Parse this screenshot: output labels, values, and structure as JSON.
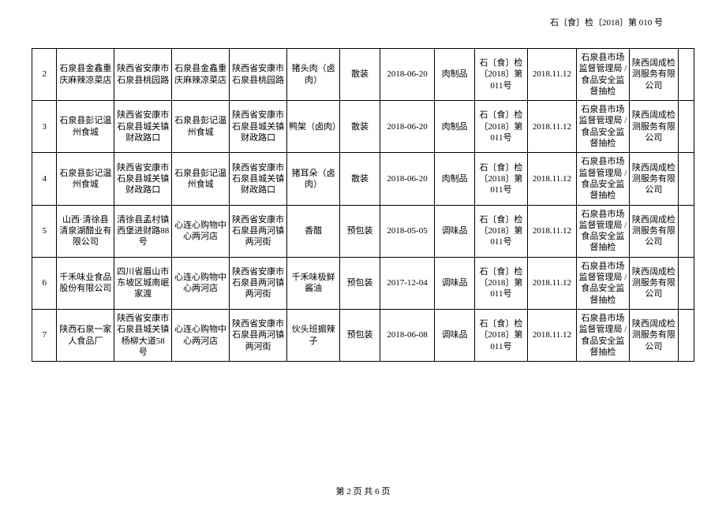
{
  "header": {
    "docref": "石〔食〕检〔2018〕第 010 号"
  },
  "rows": [
    {
      "idx": "2",
      "c1": "石泉县金鑫重庆麻辣凉菜店",
      "c2": "陕西省安康市石泉县桃园路",
      "c3": "石泉县金鑫重庆麻辣凉菜店",
      "c4": "陕西省安康市石泉县桃园路",
      "c5": "猪头肉（卤肉）",
      "c6": "散装",
      "c7": "2018-06-20",
      "c8": "肉制品",
      "c9": "石〔食〕检〔2018〕第 011号",
      "c10": "2018.11.12",
      "c11": "石泉县市场监督管理局 / 食品安全监督抽检",
      "c12": "陕西阔成检测服务有限公司",
      "c13": ""
    },
    {
      "idx": "3",
      "c1": "石泉县彭记温州食城",
      "c2": "陕西省安康市石泉县城关镇财政路口",
      "c3": "石泉县彭记温州食城",
      "c4": "陕西省安康市石泉县城关镇财政路口",
      "c5": "鸭架（卤肉）",
      "c6": "散装",
      "c7": "2018-06-20",
      "c8": "肉制品",
      "c9": "石〔食〕检〔2018〕第 011号",
      "c10": "2018.11.12",
      "c11": "石泉县市场监督管理局 / 食品安全监督抽检",
      "c12": "陕西阔成检测服务有限公司",
      "c13": ""
    },
    {
      "idx": "4",
      "c1": "石泉县彭记温州食城",
      "c2": "陕西省安康市石泉县城关镇财政路口",
      "c3": "石泉县彭记温州食城",
      "c4": "陕西省安康市石泉县城关镇财政路口",
      "c5": "猪耳朵（卤肉）",
      "c6": "散装",
      "c7": "2018-06-20",
      "c8": "肉制品",
      "c9": "石〔食〕检〔2018〕第 011号",
      "c10": "2018.11.12",
      "c11": "石泉县市场监督管理局 / 食品安全监督抽检",
      "c12": "陕西阔成检测服务有限公司",
      "c13": ""
    },
    {
      "idx": "5",
      "c1": "山西·清徐县清泉湖醋业有限公司",
      "c2": "清徐县孟村镇西堡进财路88号",
      "c3": "心连心购物中心两河店",
      "c4": "陕西省安康市石泉县两河镇两河街",
      "c5": "香醋",
      "c6": "预包装",
      "c7": "2018-05-05",
      "c8": "调味品",
      "c9": "石〔食〕检〔2018〕第 011号",
      "c10": "2018.11.12",
      "c11": "石泉县市场监督管理局 / 食品安全监督抽检",
      "c12": "陕西阔成检测服务有限公司",
      "c13": ""
    },
    {
      "idx": "6",
      "c1": "千禾味业食品股份有限公司",
      "c2": "四川省眉山市东坡区城南岷家渡",
      "c3": "心连心购物中心两河店",
      "c4": "陕西省安康市石泉县两河镇两河街",
      "c5": "千禾味极鲜酱油",
      "c6": "预包装",
      "c7": "2017-12-04",
      "c8": "调味品",
      "c9": "石〔食〕检〔2018〕第 011号",
      "c10": "2018.11.12",
      "c11": "石泉县市场监督管理局 / 食品安全监督抽检",
      "c12": "陕西阔成检测服务有限公司",
      "c13": ""
    },
    {
      "idx": "7",
      "c1": "陕西石泉一家人食品厂",
      "c2": "陕西省安康市石泉县城关镇杨柳大道58 号",
      "c3": "心连心购物中心两河店",
      "c4": "陕西省安康市石泉县两河镇两河街",
      "c5": "伙头班掮辣子",
      "c6": "预包装",
      "c7": "2018-06-08",
      "c8": "调味品",
      "c9": "石〔食〕检〔2018〕第 011号",
      "c10": "2018.11.12",
      "c11": "石泉县市场监督管理局 / 食品安全监督抽检",
      "c12": "陕西阔成检测服务有限公司",
      "c13": ""
    }
  ],
  "footer": {
    "pagenum": "第 2 页 共 6 页"
  }
}
